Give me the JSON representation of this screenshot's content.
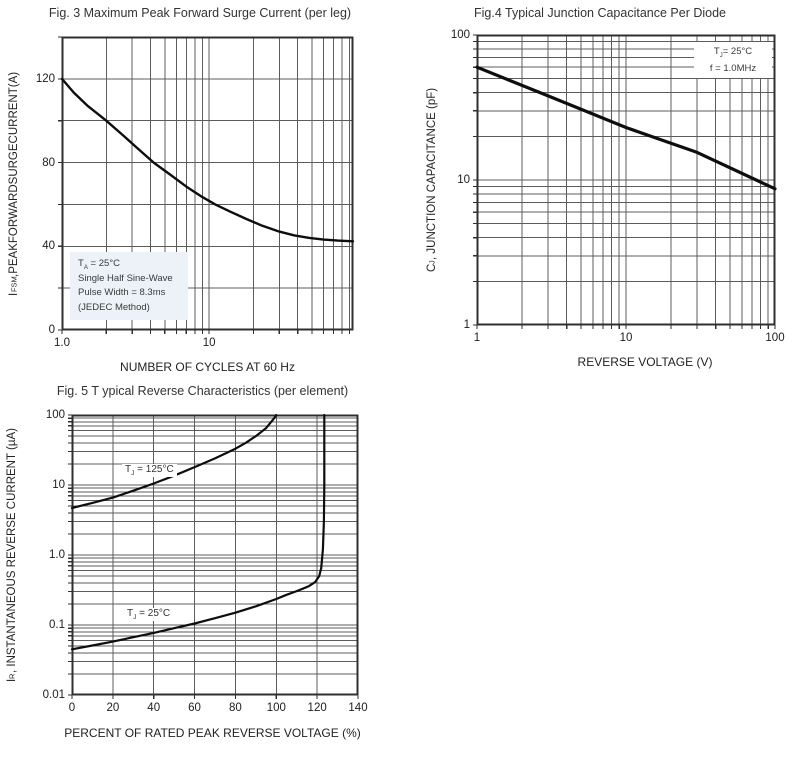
{
  "page": {
    "background": "#ffffff",
    "ink": "#0e0e0e",
    "grid_color": "#5c5c5c",
    "note_bg": "#ecf2f7"
  },
  "chart_data": [
    {
      "name": "fig3",
      "type": "line",
      "title": "Fig. 3  Maximum Peak Forward Surge Current (per leg)",
      "xlabel": "NUMBER OF CYCLES AT 60 Hz",
      "ylabel": {
        "pre": "I",
        "sub": "FSM",
        "post": ",PEAKFORWARDSURGECURRENT(A)"
      },
      "x": {
        "type": "log",
        "min": 1,
        "max": 95,
        "grid": "log"
      },
      "y": {
        "type": "linear",
        "min": 0,
        "max": 140,
        "grid": "linear",
        "step": 20
      },
      "legend_position": "none",
      "xticks": [
        {
          "v": 1,
          "label": "1.0"
        },
        {
          "v": 10,
          "label": "10"
        }
      ],
      "yticks": [
        {
          "v": 120,
          "label": "120"
        },
        {
          "v": 80,
          "label": "80"
        },
        {
          "v": 40,
          "label": "40"
        },
        {
          "v": 0,
          "label": "0"
        }
      ],
      "series": [
        {
          "name": "surge_current",
          "stroke_width": 2.4,
          "points": [
            [
              1,
              120
            ],
            [
              1.2,
              113.5
            ],
            [
              1.5,
              107
            ],
            [
              2,
              100
            ],
            [
              2.6,
              93
            ],
            [
              3.3,
              86.5
            ],
            [
              4.2,
              80
            ],
            [
              5.5,
              74
            ],
            [
              7,
              68.5
            ],
            [
              9,
              63.5
            ],
            [
              11,
              60
            ],
            [
              14,
              56.5
            ],
            [
              18,
              53
            ],
            [
              23,
              49.8
            ],
            [
              30,
              47
            ],
            [
              38,
              45.2
            ],
            [
              48,
              44
            ],
            [
              60,
              43.2
            ],
            [
              75,
              42.7
            ],
            [
              95,
              42.4
            ]
          ]
        }
      ],
      "note": [
        {
          "pre": "T",
          "sub": "A",
          "post": " = 25°C"
        },
        {
          "pre": "Single Half Sine-Wave",
          "sub": "",
          "post": ""
        },
        {
          "pre": "Pulse Width = 8.3ms",
          "sub": "",
          "post": ""
        },
        {
          "pre": "(JEDEC Method)",
          "sub": "",
          "post": ""
        }
      ]
    },
    {
      "name": "fig4",
      "type": "line",
      "title": "Fig.4 Typical Junction Capacitance Per Diode",
      "xlabel": "REVERSE VOLTAGE (V)",
      "ylabel": {
        "pre": "C",
        "sub": "J",
        "post": ", JUNCTION CAPACITANCE (pF)"
      },
      "x": {
        "type": "log",
        "min": 1,
        "max": 100,
        "grid": "log"
      },
      "y": {
        "type": "log",
        "min": 1,
        "max": 100,
        "grid": "log"
      },
      "legend_position": "none",
      "xticks": [
        {
          "v": 1,
          "label": "1"
        },
        {
          "v": 10,
          "label": "10"
        },
        {
          "v": 100,
          "label": "100"
        }
      ],
      "yticks": [
        {
          "v": 100,
          "label": "100"
        },
        {
          "v": 10,
          "label": "10"
        },
        {
          "v": 1,
          "label": "1"
        }
      ],
      "series": [
        {
          "name": "junction_capacitance",
          "stroke_width": 3.2,
          "points": [
            [
              1,
              60
            ],
            [
              3,
              38
            ],
            [
              10,
              23
            ],
            [
              30,
              15.5
            ],
            [
              100,
              8.7
            ]
          ]
        }
      ],
      "note": [
        {
          "pre": "T",
          "sub": "J",
          "post": "= 25°C"
        },
        {
          "pre": "f = 1.0MHz",
          "sub": "",
          "post": ""
        }
      ]
    },
    {
      "name": "fig5",
      "type": "line",
      "title": "Fig. 5 T ypical Reverse Characteristics (per element)",
      "xlabel": "PERCENT OF RATED PEAK REVERSE VOLTAGE (%)",
      "ylabel": {
        "pre": "I",
        "sub": "R",
        "post": ", INSTANTANEOUS REVERSE CURRENT (µA)"
      },
      "x": {
        "type": "linear",
        "min": 0,
        "max": 140,
        "grid": "linear",
        "step": 20
      },
      "y": {
        "type": "log",
        "min": 0.01,
        "max": 100,
        "grid": "log"
      },
      "legend_position": "inline-labels",
      "xticks": [
        {
          "v": 0,
          "label": "0"
        },
        {
          "v": 20,
          "label": "20"
        },
        {
          "v": 40,
          "label": "40"
        },
        {
          "v": 60,
          "label": "60"
        },
        {
          "v": 80,
          "label": "80"
        },
        {
          "v": 100,
          "label": "100"
        },
        {
          "v": 120,
          "label": "120"
        },
        {
          "v": 140,
          "label": "140"
        }
      ],
      "yticks": [
        {
          "v": 100,
          "label": "100"
        },
        {
          "v": 10,
          "label": "10"
        },
        {
          "v": 1,
          "label": "1.0"
        },
        {
          "v": 0.1,
          "label": "0.1"
        },
        {
          "v": 0.01,
          "label": "0.01"
        }
      ],
      "series": [
        {
          "name": "tj_125c",
          "stroke_width": 2.2,
          "points": [
            [
              0,
              4.7
            ],
            [
              10,
              5.55
            ],
            [
              20,
              6.6
            ],
            [
              30,
              8.3
            ],
            [
              40,
              10.5
            ],
            [
              50,
              13.6
            ],
            [
              60,
              18
            ],
            [
              70,
              24
            ],
            [
              80,
              33
            ],
            [
              85,
              40
            ],
            [
              90,
              50
            ],
            [
              95,
              65
            ],
            [
              99,
              90
            ],
            [
              100,
              100
            ]
          ]
        },
        {
          "name": "tj_25c",
          "stroke_width": 2.2,
          "points": [
            [
              0,
              0.045
            ],
            [
              10,
              0.051
            ],
            [
              20,
              0.058
            ],
            [
              30,
              0.067
            ],
            [
              40,
              0.077
            ],
            [
              50,
              0.09
            ],
            [
              60,
              0.105
            ],
            [
              70,
              0.125
            ],
            [
              80,
              0.15
            ],
            [
              90,
              0.185
            ],
            [
              100,
              0.235
            ],
            [
              105,
              0.27
            ],
            [
              110,
              0.305
            ],
            [
              113,
              0.33
            ],
            [
              116,
              0.36
            ],
            [
              119,
              0.41
            ],
            [
              121,
              0.5
            ],
            [
              122,
              0.65
            ],
            [
              122.8,
              1.2
            ],
            [
              123.3,
              3
            ],
            [
              123.5,
              10
            ],
            [
              123.5,
              100
            ]
          ]
        }
      ],
      "labels": [
        {
          "pre": "T",
          "sub": "J",
          "post": " = 125°C"
        },
        {
          "pre": "T",
          "sub": "J",
          "post": " = 25°C"
        }
      ]
    }
  ]
}
